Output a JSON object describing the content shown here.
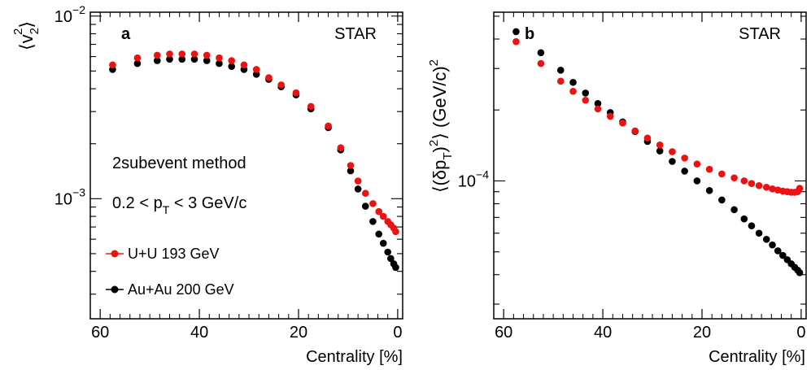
{
  "chart_data": [
    {
      "type": "scatter",
      "panel_label": "a",
      "experiment": "STAR",
      "xlabel": "Centrality [%]",
      "ylabel": [
        "⟨v",
        "2",
        "2",
        "⟩"
      ],
      "xlim": [
        62,
        -1
      ],
      "ylim": [
        0.00022,
        0.0105
      ],
      "yscale": "log",
      "xticks": [
        60,
        40,
        20,
        0
      ],
      "yticks": [
        {
          "value": 0.001,
          "base": "10",
          "exp": "−3"
        },
        {
          "value": 0.01,
          "base": "10",
          "exp": "−2"
        }
      ],
      "annotations": {
        "method": "2subevent method",
        "cut": [
          "0.2 < p",
          "T",
          " < 3 GeV/c"
        ]
      },
      "legend": [
        {
          "label": "U+U 193 GeV",
          "color": "#ee1111"
        },
        {
          "label": "Au+Au 200 GeV",
          "color": "#000000"
        }
      ],
      "series": [
        {
          "name": "U+U 193 GeV",
          "color": "#ee1111",
          "x": [
            57.5,
            52.5,
            48.5,
            46.0,
            43.5,
            41.0,
            38.5,
            36.0,
            33.5,
            31.0,
            28.5,
            26.0,
            23.5,
            20.5,
            17.5,
            14.0,
            11.5,
            9.5,
            8.0,
            6.5,
            5.0,
            3.8,
            2.9,
            2.0,
            1.4,
            0.8,
            0.4
          ],
          "values": [
            0.0054,
            0.0059,
            0.0061,
            0.0062,
            0.0062,
            0.0062,
            0.0061,
            0.0059,
            0.0057,
            0.0054,
            0.0051,
            0.0046,
            0.0042,
            0.0038,
            0.0032,
            0.0025,
            0.0019,
            0.00152,
            0.00125,
            0.00107,
            0.00094,
            0.00085,
            0.0008,
            0.00075,
            0.00072,
            0.00069,
            0.00066
          ]
        },
        {
          "name": "Au+Au 200 GeV",
          "color": "#000000",
          "x": [
            57.5,
            52.5,
            48.5,
            46.0,
            43.5,
            41.0,
            38.5,
            36.0,
            33.5,
            31.0,
            28.5,
            26.0,
            23.5,
            20.5,
            17.5,
            14.0,
            11.5,
            9.5,
            8.0,
            6.5,
            5.0,
            3.8,
            2.9,
            2.0,
            1.4,
            0.8,
            0.4
          ],
          "values": [
            0.0051,
            0.0055,
            0.0057,
            0.0058,
            0.0058,
            0.0058,
            0.0057,
            0.0055,
            0.0053,
            0.0051,
            0.0048,
            0.0045,
            0.0041,
            0.0037,
            0.0031,
            0.00245,
            0.00185,
            0.00142,
            0.00113,
            0.00091,
            0.00075,
            0.00064,
            0.00057,
            0.00051,
            0.00047,
            0.00044,
            0.00042
          ]
        }
      ]
    },
    {
      "type": "scatter",
      "panel_label": "b",
      "experiment": "STAR",
      "xlabel": "Centrality [%]",
      "ylabel": [
        "⟨(δp",
        "T",
        ")",
        "2",
        "⟩ (GeV/c)",
        "2"
      ],
      "xlim": [
        62,
        -1
      ],
      "ylim": [
        2.6e-05,
        0.00052
      ],
      "yscale": "log",
      "xticks": [
        60,
        40,
        20,
        0
      ],
      "yticks": [
        {
          "value": 0.0001,
          "base": "10",
          "exp": "−4"
        }
      ],
      "series": [
        {
          "name": "U+U 193 GeV",
          "color": "#ee1111",
          "x": [
            57.5,
            52.5,
            48.5,
            46.0,
            43.5,
            41.0,
            38.5,
            36.0,
            33.5,
            31.0,
            28.5,
            26.0,
            23.5,
            21.0,
            18.5,
            16.0,
            13.5,
            11.5,
            10.0,
            8.5,
            7.0,
            5.8,
            4.7,
            3.7,
            2.8,
            2.0,
            1.3,
            0.7,
            0.3
          ],
          "values": [
            0.00039,
            0.000315,
            0.000265,
            0.00024,
            0.00022,
            0.000202,
            0.000188,
            0.000176,
            0.000163,
            0.000152,
            0.000142,
            0.000133,
            0.000125,
            0.000118,
            0.000112,
            0.000107,
            0.000103,
            0.0001,
            9.75e-05,
            9.55e-05,
            9.4e-05,
            9.25e-05,
            9.15e-05,
            9.05e-05,
            9e-05,
            8.95e-05,
            8.95e-05,
            9e-05,
            9.3e-05
          ]
        },
        {
          "name": "Au+Au 200 GeV",
          "color": "#000000",
          "x": [
            57.5,
            52.5,
            48.5,
            46.0,
            43.5,
            41.0,
            38.5,
            36.0,
            33.5,
            31.0,
            28.5,
            26.0,
            23.5,
            21.0,
            18.5,
            16.0,
            13.5,
            11.5,
            10.0,
            8.5,
            7.0,
            5.8,
            4.7,
            3.7,
            2.8,
            2.0,
            1.3,
            0.7,
            0.3
          ],
          "values": [
            0.00043,
            0.00035,
            0.000295,
            0.000262,
            0.000236,
            0.000213,
            0.000195,
            0.000178,
            0.000162,
            0.000147,
            0.000134,
            0.000121,
            0.00011,
            0.0001,
            9.1e-05,
            8.3e-05,
            7.55e-05,
            6.9e-05,
            6.45e-05,
            6e-05,
            5.65e-05,
            5.35e-05,
            5.05e-05,
            4.83e-05,
            4.63e-05,
            4.45e-05,
            4.3e-05,
            4.18e-05,
            4.08e-05
          ]
        }
      ]
    }
  ]
}
